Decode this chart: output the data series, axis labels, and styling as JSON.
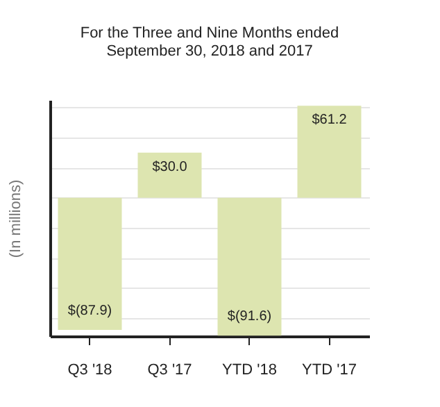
{
  "chart_data": {
    "type": "bar",
    "title": [
      "For the Three and Nine Months ended",
      "September 30, 2018 and 2017"
    ],
    "ylabel": "(In millions)",
    "categories": [
      "Q3 '18",
      "Q3 '17",
      "YTD '18",
      "YTD '17"
    ],
    "values": [
      -87.9,
      30.0,
      -91.6,
      61.2
    ],
    "value_labels": [
      "$(87.9)",
      "$30.0",
      "$(91.6)",
      "$61.2"
    ],
    "color": "#dde5b0",
    "ylim": [
      -92,
      65
    ],
    "grid": "y",
    "tick_labels": "x"
  }
}
